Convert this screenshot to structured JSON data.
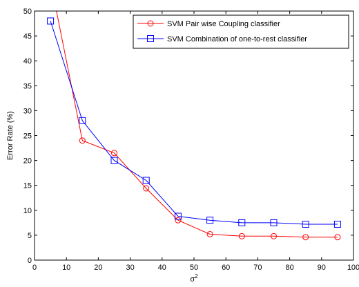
{
  "chart_data": {
    "type": "line",
    "title": "",
    "xlabel": "σ",
    "xlabel_superscript": "2",
    "ylabel": "Error Rate (%)",
    "xlim": [
      0,
      100
    ],
    "ylim": [
      0,
      50
    ],
    "xticks": [
      0,
      10,
      20,
      30,
      40,
      50,
      60,
      70,
      80,
      90,
      100
    ],
    "yticks": [
      0,
      5,
      10,
      15,
      20,
      25,
      30,
      35,
      40,
      45,
      50
    ],
    "grid": false,
    "legend_position": "top-right",
    "x": [
      5,
      15,
      25,
      35,
      45,
      55,
      65,
      75,
      85,
      95
    ],
    "series": [
      {
        "name": "SVM Pair wise Coupling classifier",
        "color": "#ff0000",
        "marker": "circle",
        "values": [
          56,
          24,
          21.5,
          14.4,
          8,
          5.2,
          4.8,
          4.8,
          4.6,
          4.6
        ]
      },
      {
        "name": "SVM Combination of one-to-rest classifier",
        "color": "#0000ff",
        "marker": "square",
        "values": [
          48,
          28,
          20,
          16,
          8.8,
          8,
          7.5,
          7.5,
          7.2,
          7.2
        ]
      }
    ]
  }
}
